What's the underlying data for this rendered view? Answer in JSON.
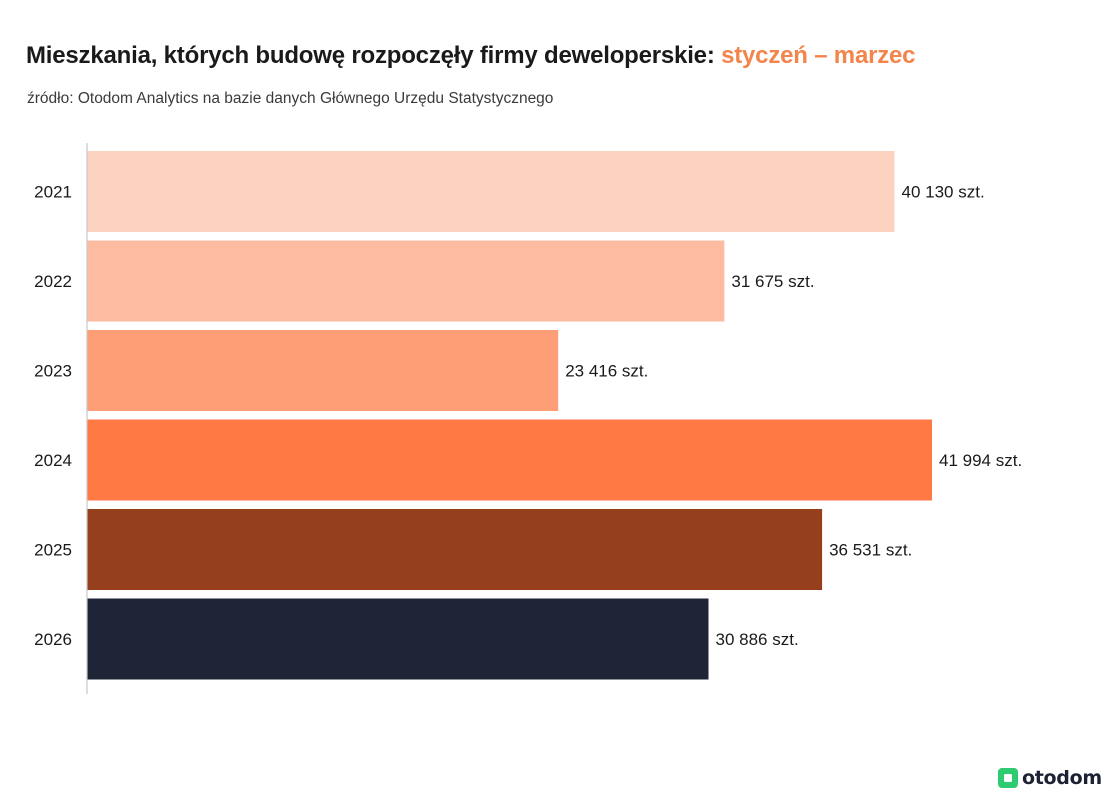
{
  "header": {
    "title_main": "Mieszkania, których budowę rozpoczęły firmy deweloperskie: ",
    "title_accent": "styczeń – marzec",
    "source": "źródło: Otodom Analytics na bazie danych Głównego Urzędu Statystycznego"
  },
  "logo": {
    "text": "otodom",
    "icon": "otodom-logo-icon",
    "color": "#2ecc71"
  },
  "colors": {
    "accent": "#f3844c",
    "axis": "#c8c8c8"
  },
  "chart_data": {
    "type": "bar",
    "orientation": "horizontal",
    "title": "Mieszkania, których budowę rozpoczęły firmy deweloperskie: styczeń – marzec",
    "xlabel": "",
    "ylabel": "",
    "grid": false,
    "xlim": [
      0,
      41994
    ],
    "categories": [
      "2021",
      "2022",
      "2023",
      "2024",
      "2025",
      "2026"
    ],
    "values": [
      40130,
      31675,
      23416,
      41994,
      36531,
      30886
    ],
    "value_labels": [
      "40 130 szt.",
      "31 675 szt.",
      "23 416 szt.",
      "41 994 szt.",
      "36 531 szt.",
      "30 886 szt."
    ],
    "bar_colors": [
      "#fcd3c1",
      "#fdbca2",
      "#fe9e76",
      "#ff7945",
      "#963f1c",
      "#1e2537"
    ]
  }
}
